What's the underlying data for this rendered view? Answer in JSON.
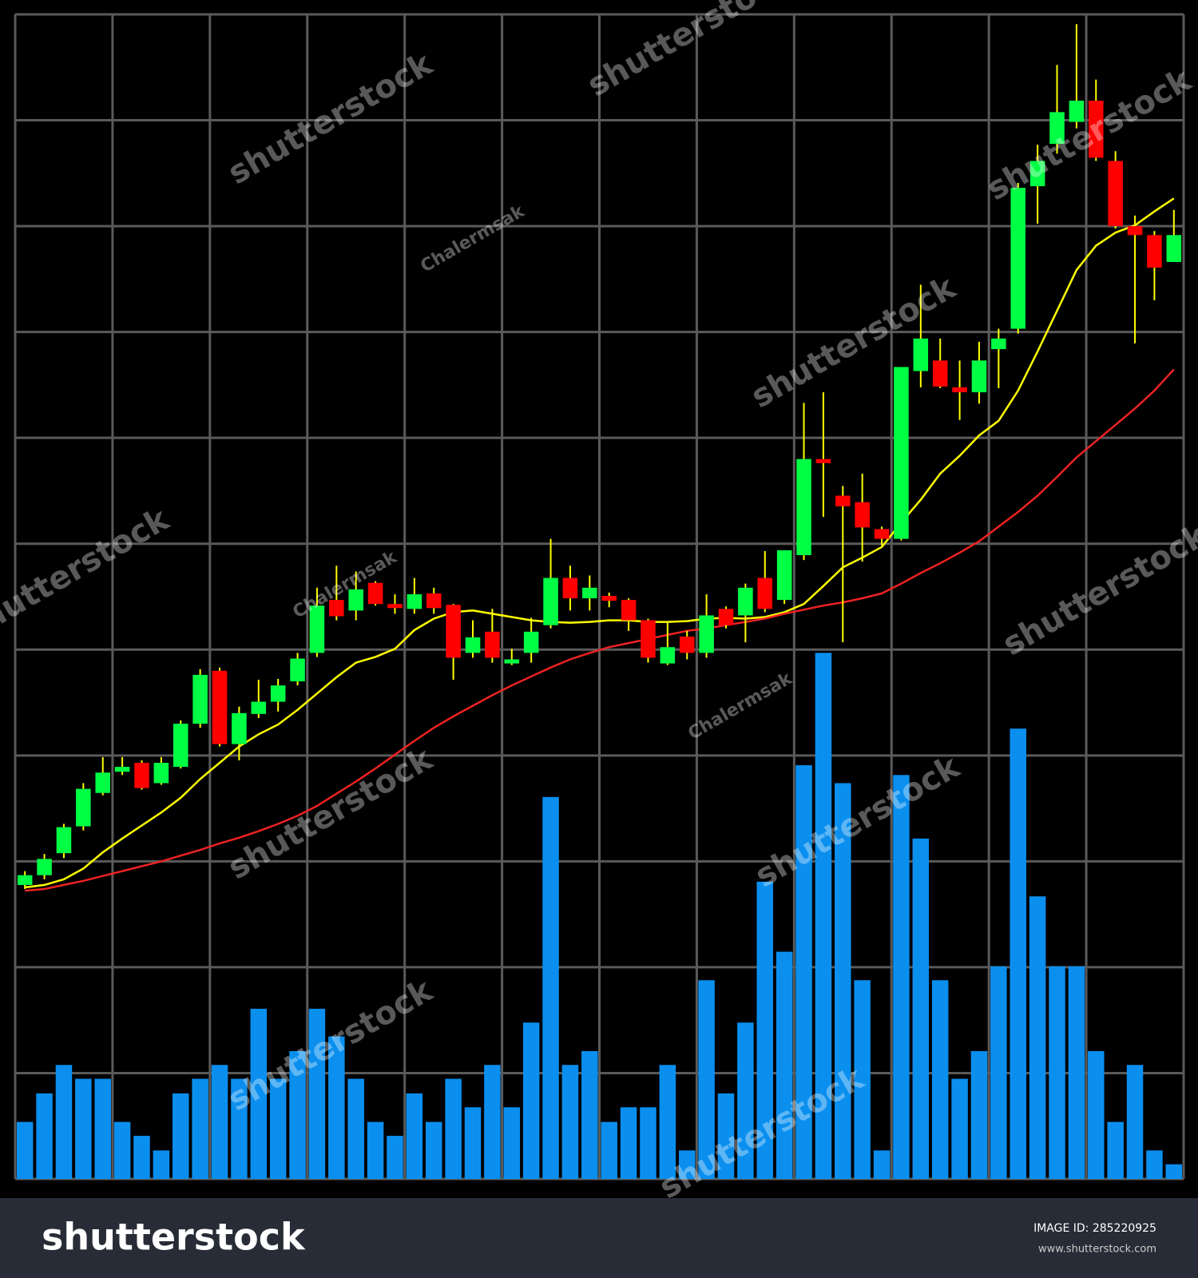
{
  "chart_data": {
    "type": "candlestick",
    "categories": [
      null,
      null,
      null,
      null,
      null,
      null,
      null,
      null,
      null,
      null,
      null,
      null,
      null,
      null,
      null,
      null,
      null,
      null,
      null,
      null,
      null,
      null,
      null,
      null,
      null,
      null,
      null,
      null,
      null,
      null,
      null,
      null,
      null,
      null,
      null,
      null,
      null,
      null,
      null,
      null,
      null,
      null,
      null,
      null,
      null,
      null,
      null,
      null,
      null,
      null,
      null,
      null,
      null,
      null,
      null,
      null,
      null,
      null,
      null,
      null
    ],
    "open": [
      361,
      373,
      400,
      433,
      474,
      500,
      511,
      486,
      506,
      559,
      624,
      534,
      571,
      586,
      611,
      646,
      711,
      698,
      732,
      706,
      700,
      719,
      705,
      646,
      672,
      633,
      646,
      680,
      738,
      713,
      716,
      711,
      686,
      633,
      666,
      646,
      700,
      692,
      738,
      711,
      766,
      884,
      839,
      831,
      798,
      786,
      992,
      1005,
      972,
      966,
      1019,
      1044,
      1219,
      1271,
      1298,
      1324,
      1250,
      1170,
      1159,
      1126
    ],
    "high": [
      378,
      399,
      436,
      486,
      518,
      518,
      514,
      518,
      563,
      626,
      628,
      580,
      613,
      614,
      646,
      726,
      753,
      746,
      734,
      718,
      738,
      726,
      706,
      686,
      700,
      651,
      689,
      786,
      753,
      741,
      720,
      713,
      688,
      684,
      673,
      718,
      703,
      731,
      771,
      772,
      953,
      966,
      851,
      866,
      801,
      997,
      1098,
      1032,
      1005,
      1028,
      1044,
      1223,
      1270,
      1368,
      1418,
      1350,
      1262,
      1183,
      1164,
      1190
    ],
    "low": [
      356,
      368,
      394,
      428,
      471,
      496,
      478,
      484,
      504,
      554,
      531,
      514,
      566,
      574,
      606,
      641,
      686,
      686,
      704,
      694,
      694,
      694,
      613,
      640,
      634,
      631,
      634,
      676,
      698,
      698,
      702,
      673,
      634,
      631,
      638,
      640,
      676,
      659,
      696,
      706,
      760,
      813,
      659,
      758,
      778,
      784,
      972,
      971,
      932,
      952,
      971,
      1038,
      1173,
      1259,
      1290,
      1250,
      1167,
      1026,
      1079,
      1126
    ],
    "close": [
      373,
      393,
      432,
      479,
      499,
      506,
      480,
      511,
      559,
      619,
      534,
      572,
      586,
      606,
      639,
      704,
      691,
      724,
      706,
      701,
      718,
      701,
      640,
      665,
      640,
      638,
      672,
      738,
      713,
      726,
      710,
      686,
      640,
      653,
      646,
      692,
      680,
      726,
      700,
      772,
      884,
      879,
      826,
      800,
      786,
      997,
      1032,
      973,
      966,
      1005,
      1032,
      1217,
      1250,
      1310,
      1324,
      1254,
      1170,
      1159,
      1119,
      1159
    ],
    "up_color": "#00ff44",
    "down_color": "#ff0000",
    "lines": [
      {
        "color": "#ffff00",
        "values": [
          358,
          361,
          368,
          381,
          401,
          418,
          434,
          450,
          468,
          491,
          511,
          531,
          546,
          558,
          576,
          596,
          616,
          634,
          641,
          651,
          674,
          688,
          696,
          698,
          694,
          690,
          686,
          684,
          683,
          684,
          686,
          686,
          684,
          684,
          685,
          688,
          689,
          688,
          690,
          696,
          706,
          728,
          751,
          763,
          776,
          806,
          834,
          866,
          888,
          913,
          931,
          968,
          1016,
          1066,
          1116,
          1146,
          1162,
          1171,
          1188,
          1204
        ]
      },
      {
        "color": "#ee2222",
        "values": [
          354,
          356,
          361,
          366,
          372,
          378,
          384,
          390,
          397,
          404,
          412,
          419,
          427,
          436,
          446,
          458,
          473,
          488,
          504,
          521,
          538,
          554,
          568,
          581,
          594,
          606,
          617,
          628,
          638,
          646,
          653,
          658,
          663,
          668,
          673,
          676,
          680,
          684,
          688,
          694,
          699,
          704,
          708,
          713,
          719,
          731,
          744,
          756,
          769,
          783,
          801,
          819,
          839,
          862,
          886,
          906,
          926,
          946,
          968,
          994
        ]
      }
    ],
    "volume": {
      "color": "#0a8fef",
      "values": [
        70,
        105,
        140,
        123,
        123,
        70,
        53,
        35,
        105,
        123,
        140,
        123,
        209,
        123,
        157,
        209,
        175,
        123,
        70,
        53,
        105,
        70,
        123,
        88,
        140,
        88,
        192,
        469,
        140,
        157,
        70,
        88,
        88,
        140,
        35,
        244,
        105,
        192,
        365,
        279,
        508,
        646,
        486,
        244,
        35,
        496,
        418,
        244,
        123,
        157,
        261,
        553,
        347,
        261,
        261,
        157,
        70,
        140,
        35,
        18
      ]
    },
    "ylim": [
      0,
      1430
    ],
    "yticks": [
      0,
      130,
      260,
      390,
      520,
      650,
      780,
      910,
      1040,
      1170,
      1300,
      1430
    ],
    "grid": true,
    "grid_color": "#5a5a5a",
    "watermarks": {
      "brand": "shutterstock",
      "author": "Chalermsak"
    }
  },
  "footer": {
    "logo": "shutterstock",
    "image_id": "IMAGE ID: 285220925",
    "website": "www.shutterstock.com"
  }
}
